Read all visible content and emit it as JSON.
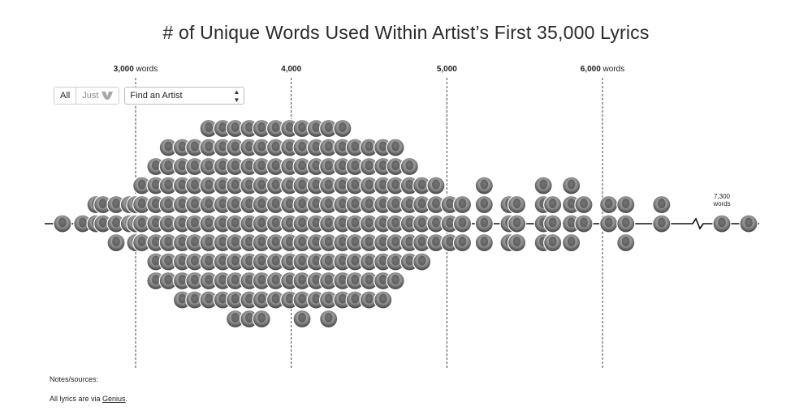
{
  "title": "# of Unique Words Used Within Artist’s First 35,000 Lyrics",
  "controls": {
    "toggle_all": "All",
    "toggle_just": "Just",
    "find_artist": "Find an Artist"
  },
  "notes": {
    "heading": "Notes/sources:",
    "sources_prefix": "All lyrics are via ",
    "sources_link": "Genius",
    "sources_suffix": "."
  },
  "chart_data": {
    "type": "scatter",
    "title": "# of Unique Words Used Within Artist’s First 35,000 Lyrics",
    "xlabel": "",
    "x_axis_ticks": [
      {
        "value": 3000,
        "label": "3,000",
        "unit": "words"
      },
      {
        "value": 4000,
        "label": "4,000",
        "unit": ""
      },
      {
        "value": 5000,
        "label": "5,000",
        "unit": ""
      },
      {
        "value": 6000,
        "label": "6,000",
        "unit": "words"
      }
    ],
    "axis_break": {
      "after_value": 6500,
      "resumes_at": 7300
    },
    "outlier_annotation": {
      "value": 7300,
      "label": "7,300",
      "unit": "words"
    },
    "colors": {
      "axis": "#111111",
      "gridline": "#444444",
      "marker_fill": "#9a9a9a"
    },
    "points": [
      2530,
      2660,
      2745,
      2745,
      2790,
      2790,
      2875,
      2875,
      2875,
      2960,
      2960,
      3000,
      3000,
      3000,
      3040,
      3040,
      3040,
      3040,
      3130,
      3130,
      3130,
      3130,
      3130,
      3130,
      3130,
      3210,
      3210,
      3210,
      3210,
      3210,
      3210,
      3210,
      3210,
      3300,
      3300,
      3300,
      3300,
      3300,
      3300,
      3300,
      3300,
      3300,
      3380,
      3380,
      3380,
      3380,
      3380,
      3380,
      3380,
      3380,
      3380,
      3470,
      3470,
      3470,
      3470,
      3470,
      3470,
      3470,
      3470,
      3470,
      3470,
      3560,
      3560,
      3560,
      3560,
      3560,
      3560,
      3560,
      3560,
      3560,
      3560,
      3640,
      3640,
      3640,
      3640,
      3640,
      3640,
      3640,
      3640,
      3640,
      3640,
      3640,
      3730,
      3730,
      3730,
      3730,
      3730,
      3730,
      3730,
      3730,
      3730,
      3730,
      3730,
      3810,
      3810,
      3810,
      3810,
      3810,
      3810,
      3810,
      3810,
      3810,
      3810,
      3810,
      3900,
      3900,
      3900,
      3900,
      3900,
      3900,
      3900,
      3900,
      3900,
      3900,
      3990,
      3990,
      3990,
      3990,
      3990,
      3990,
      3990,
      3990,
      3990,
      3990,
      4070,
      4070,
      4070,
      4070,
      4070,
      4070,
      4070,
      4070,
      4070,
      4070,
      4070,
      4160,
      4160,
      4160,
      4160,
      4160,
      4160,
      4160,
      4160,
      4160,
      4160,
      4240,
      4240,
      4240,
      4240,
      4240,
      4240,
      4240,
      4240,
      4240,
      4240,
      4240,
      4330,
      4330,
      4330,
      4330,
      4330,
      4330,
      4330,
      4330,
      4330,
      4330,
      4410,
      4410,
      4410,
      4410,
      4410,
      4410,
      4410,
      4410,
      4410,
      4500,
      4500,
      4500,
      4500,
      4500,
      4500,
      4500,
      4500,
      4500,
      4590,
      4590,
      4590,
      4590,
      4590,
      4590,
      4590,
      4590,
      4590,
      4670,
      4670,
      4670,
      4670,
      4670,
      4670,
      4670,
      4670,
      4760,
      4760,
      4760,
      4760,
      4760,
      4760,
      4840,
      4840,
      4840,
      4840,
      4840,
      4930,
      4930,
      4930,
      4930,
      5020,
      5020,
      5020,
      5100,
      5100,
      5100,
      5240,
      5240,
      5240,
      5240,
      5400,
      5400,
      5400,
      5450,
      5450,
      5450,
      5620,
      5620,
      5620,
      5620,
      5680,
      5680,
      5680,
      5800,
      5800,
      5800,
      5800,
      5880,
      5880,
      6040,
      6040,
      6150,
      6150,
      6150,
      6380,
      6380,
      7300,
      7500
    ]
  }
}
